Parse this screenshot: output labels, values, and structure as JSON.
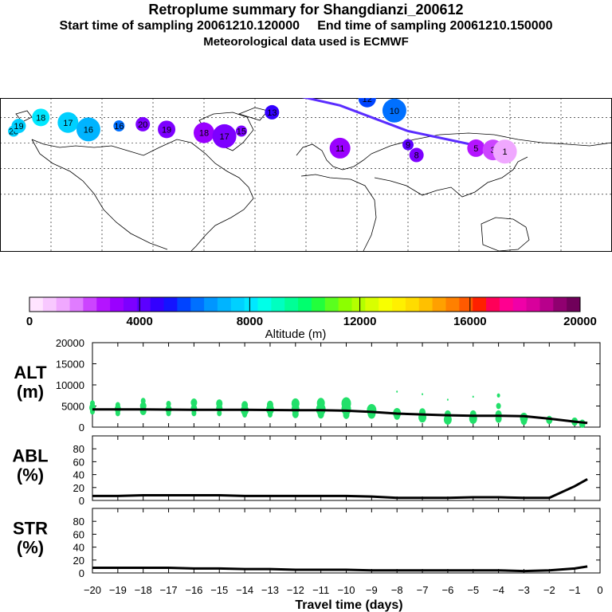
{
  "title": "Retroplume summary for Shangdianzi_200612",
  "subtitle": "Start time of sampling 20061210.120000     End time of sampling 20061210.150000",
  "subtitle2": "Meteorological data used is ECMWF",
  "map": {
    "path_color": "#5a2cff",
    "clusters": [
      {
        "label": "20",
        "lon": -172,
        "lat": 52,
        "alt": 7800
      },
      {
        "label": "19",
        "lon": -169,
        "lat": 55,
        "alt": 7800
      },
      {
        "label": "18",
        "lon": -156,
        "lat": 60,
        "alt": 7900
      },
      {
        "label": "17",
        "lon": -140,
        "lat": 57,
        "alt": 7400
      },
      {
        "label": "16",
        "lon": -128,
        "lat": 53,
        "alt": 7100
      },
      {
        "label": "16",
        "lon": -110,
        "lat": 55,
        "alt": 6300
      },
      {
        "label": "20",
        "lon": -96,
        "lat": 56,
        "alt": 3900
      },
      {
        "label": "19",
        "lon": -82,
        "lat": 53,
        "alt": 3700
      },
      {
        "label": "18",
        "lon": -60,
        "lat": 51,
        "alt": 3400
      },
      {
        "label": "17",
        "lon": -48,
        "lat": 49,
        "alt": 3500
      },
      {
        "label": "15",
        "lon": -38,
        "lat": 52,
        "alt": 3800
      },
      {
        "label": "13",
        "lon": -20,
        "lat": 63,
        "alt": 4500
      },
      {
        "label": "12",
        "lon": 36,
        "lat": 71,
        "alt": 5400
      },
      {
        "label": "11",
        "lon": 20,
        "lat": 42,
        "alt": 3300
      },
      {
        "label": "10",
        "lon": 52,
        "lat": 64,
        "alt": 6000
      },
      {
        "label": "9",
        "lon": 60,
        "lat": 44,
        "alt": 4300
      },
      {
        "label": "8",
        "lon": 65,
        "lat": 38,
        "alt": 3800
      },
      {
        "label": "5",
        "lon": 100,
        "lat": 42,
        "alt": 2500
      },
      {
        "label": "3",
        "lon": 110,
        "lat": 41,
        "alt": 2000
      },
      {
        "label": "1",
        "lon": 117,
        "lat": 40,
        "alt": 1200
      }
    ]
  },
  "colorbar": {
    "ticks": [
      "0",
      "4000",
      "8000",
      "12000",
      "16000",
      "20000"
    ],
    "title": "Altitude (m)",
    "colors": [
      "#ffe4ff",
      "#f8c8ff",
      "#f0a8ff",
      "#e07cff",
      "#cc44ff",
      "#b414ff",
      "#9a00ff",
      "#7d00ff",
      "#5c00ff",
      "#3300ff",
      "#1414ff",
      "#0044ff",
      "#0070ff",
      "#0096ff",
      "#00b4ff",
      "#00d0ff",
      "#00e8ff",
      "#00ffe8",
      "#00ffc0",
      "#00ff96",
      "#00ff6e",
      "#22ff3c",
      "#5aff1e",
      "#8cff00",
      "#b4ff00",
      "#d8ff00",
      "#f8ff00",
      "#fff000",
      "#ffdc00",
      "#ffc000",
      "#ffa000",
      "#ff8000",
      "#ff5a00",
      "#ff2000",
      "#ff0058",
      "#ff0090",
      "#f000a8",
      "#d8009c",
      "#b8008c",
      "#900070",
      "#70005a"
    ]
  },
  "chart_data": [
    {
      "type": "line",
      "name": "ALT",
      "ylabel": "ALT\n(m)",
      "ylabel_lines": [
        "ALT",
        "(m)"
      ],
      "ylim": [
        0,
        20000
      ],
      "yticks": [
        "20000",
        "15000",
        "10000",
        "5000",
        "0"
      ],
      "x": [
        -20,
        -19,
        -18,
        -17,
        -16,
        -15,
        -14,
        -13,
        -12,
        -11,
        -10,
        -9,
        -8,
        -7,
        -6,
        -5,
        -4,
        -3,
        -2,
        -1,
        -0.5
      ],
      "values": [
        4200,
        4200,
        4200,
        4150,
        4100,
        4100,
        4100,
        4050,
        4000,
        4000,
        3900,
        3600,
        3200,
        3000,
        2800,
        2700,
        2700,
        2600,
        2000,
        1300,
        1000
      ],
      "scatter": [
        {
          "x": -20,
          "y": 5600,
          "s": 3
        },
        {
          "x": -20,
          "y": 4600,
          "s": 4
        },
        {
          "x": -20,
          "y": 3700,
          "s": 3
        },
        {
          "x": -19,
          "y": 5200,
          "s": 3
        },
        {
          "x": -19,
          "y": 4300,
          "s": 4
        },
        {
          "x": -19,
          "y": 3300,
          "s": 3
        },
        {
          "x": -18,
          "y": 6200,
          "s": 3
        },
        {
          "x": -18,
          "y": 5000,
          "s": 4
        },
        {
          "x": -18,
          "y": 3800,
          "s": 4
        },
        {
          "x": -17,
          "y": 5500,
          "s": 3
        },
        {
          "x": -17,
          "y": 4200,
          "s": 4
        },
        {
          "x": -17,
          "y": 3300,
          "s": 3
        },
        {
          "x": -16,
          "y": 5800,
          "s": 4
        },
        {
          "x": -16,
          "y": 4400,
          "s": 4
        },
        {
          "x": -16,
          "y": 3300,
          "s": 3
        },
        {
          "x": -15,
          "y": 5600,
          "s": 4
        },
        {
          "x": -15,
          "y": 4500,
          "s": 4
        },
        {
          "x": -15,
          "y": 3300,
          "s": 3
        },
        {
          "x": -14,
          "y": 5200,
          "s": 4
        },
        {
          "x": -14,
          "y": 4000,
          "s": 5
        },
        {
          "x": -14,
          "y": 3000,
          "s": 3
        },
        {
          "x": -13,
          "y": 5300,
          "s": 4
        },
        {
          "x": -13,
          "y": 4200,
          "s": 5
        },
        {
          "x": -13,
          "y": 3000,
          "s": 3
        },
        {
          "x": -12,
          "y": 5600,
          "s": 5
        },
        {
          "x": -12,
          "y": 4300,
          "s": 5
        },
        {
          "x": -12,
          "y": 3100,
          "s": 4
        },
        {
          "x": -11,
          "y": 5700,
          "s": 5
        },
        {
          "x": -11,
          "y": 4200,
          "s": 6
        },
        {
          "x": -11,
          "y": 3000,
          "s": 4
        },
        {
          "x": -10,
          "y": 5600,
          "s": 6
        },
        {
          "x": -10,
          "y": 4300,
          "s": 6
        },
        {
          "x": -10,
          "y": 2900,
          "s": 4
        },
        {
          "x": -9,
          "y": 4000,
          "s": 6
        },
        {
          "x": -9,
          "y": 3200,
          "s": 5
        },
        {
          "x": -8,
          "y": 8400,
          "s": 1
        },
        {
          "x": -8,
          "y": 3300,
          "s": 5
        },
        {
          "x": -8,
          "y": 2700,
          "s": 4
        },
        {
          "x": -7,
          "y": 7800,
          "s": 1
        },
        {
          "x": -7,
          "y": 3500,
          "s": 4
        },
        {
          "x": -7,
          "y": 2300,
          "s": 5
        },
        {
          "x": -6,
          "y": 6500,
          "s": 1
        },
        {
          "x": -6,
          "y": 3000,
          "s": 4
        },
        {
          "x": -6,
          "y": 1800,
          "s": 5
        },
        {
          "x": -5,
          "y": 7200,
          "s": 1
        },
        {
          "x": -5,
          "y": 3000,
          "s": 4
        },
        {
          "x": -5,
          "y": 2000,
          "s": 5
        },
        {
          "x": -4,
          "y": 7500,
          "s": 2
        },
        {
          "x": -4,
          "y": 5000,
          "s": 3
        },
        {
          "x": -4,
          "y": 3000,
          "s": 4
        },
        {
          "x": -4,
          "y": 2000,
          "s": 4
        },
        {
          "x": -3,
          "y": 2200,
          "s": 5
        },
        {
          "x": -3,
          "y": 1500,
          "s": 4
        },
        {
          "x": -2,
          "y": 1700,
          "s": 4
        },
        {
          "x": -1,
          "y": 1300,
          "s": 4
        },
        {
          "x": -0.7,
          "y": 800,
          "s": 4
        }
      ]
    },
    {
      "type": "line",
      "name": "ABL",
      "ylabel": "ABL\n(%)",
      "ylabel_lines": [
        "ABL",
        "(%)"
      ],
      "ylim": [
        0,
        100
      ],
      "yticks": [
        "80",
        "60",
        "40",
        "20",
        "0"
      ],
      "x": [
        -20,
        -19,
        -18,
        -17,
        -16,
        -15,
        -14,
        -13,
        -12,
        -11,
        -10,
        -9,
        -8,
        -7,
        -6,
        -5,
        -4,
        -3,
        -2,
        -1,
        -0.5
      ],
      "values": [
        7,
        7,
        8,
        8,
        8,
        8,
        7,
        7,
        7,
        7,
        7,
        6,
        4,
        4,
        4,
        5,
        5,
        4,
        4,
        22,
        33
      ]
    },
    {
      "type": "line",
      "name": "STR",
      "ylabel": "STR\n(%)",
      "ylabel_lines": [
        "STR",
        "(%)"
      ],
      "ylim": [
        0,
        100
      ],
      "yticks": [
        "80",
        "60",
        "40",
        "20",
        "0"
      ],
      "x": [
        -20,
        -19,
        -18,
        -17,
        -16,
        -15,
        -14,
        -13,
        -12,
        -11,
        -10,
        -9,
        -8,
        -7,
        -6,
        -5,
        -4,
        -3,
        -2,
        -1,
        -0.5
      ],
      "values": [
        8,
        8,
        8,
        8,
        7,
        7,
        6,
        6,
        5,
        5,
        5,
        4,
        4,
        4,
        4,
        4,
        4,
        3,
        4,
        7,
        10
      ]
    }
  ],
  "xaxis": {
    "ticks": [
      "−20",
      "−19",
      "−18",
      "−17",
      "−16",
      "−15",
      "−14",
      "−13",
      "−12",
      "−11",
      "−10",
      "−9",
      "−8",
      "−7",
      "−6",
      "−5",
      "−4",
      "−3",
      "−2",
      "−1",
      "0"
    ],
    "label": "Travel time (days)"
  }
}
